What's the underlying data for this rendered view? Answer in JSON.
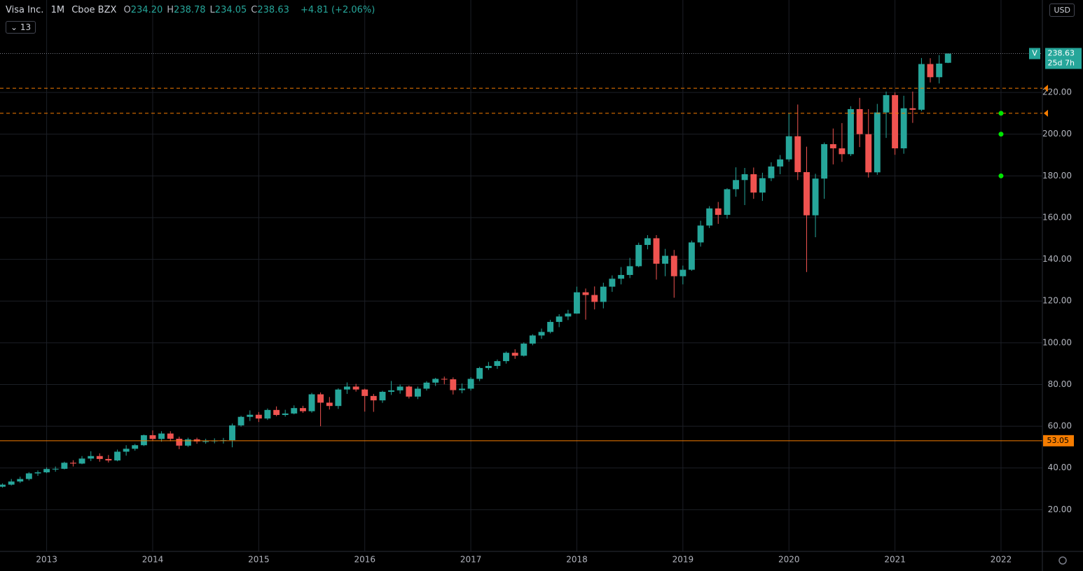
{
  "header": {
    "symbol": "Visa Inc.",
    "interval": "1M",
    "exchange": "Cboe BZX",
    "ohlc": [
      {
        "key": "O",
        "value": "234.20"
      },
      {
        "key": "H",
        "value": "238.78"
      },
      {
        "key": "L",
        "value": "234.05"
      },
      {
        "key": "C",
        "value": "238.63"
      }
    ],
    "change": "+4.81 (+2.06%)",
    "indicator_count": "13",
    "currency": "USD"
  },
  "chart_data": {
    "type": "candlestick",
    "symbol_tag": "V",
    "countdown": "25d 7h",
    "xlim": [
      2012.56,
      2022.39
    ],
    "ylim": [
      0,
      264.3
    ],
    "xticks": [
      2013,
      2014,
      2015,
      2016,
      2017,
      2018,
      2019,
      2020,
      2021,
      2022
    ],
    "yticks": [
      {
        "value": 20,
        "label": "20.00"
      },
      {
        "value": 40,
        "label": "40.00"
      },
      {
        "value": 60,
        "label": "60.00"
      },
      {
        "value": 80,
        "label": "80.00"
      },
      {
        "value": 100,
        "label": "100.00"
      },
      {
        "value": 120,
        "label": "120.00"
      },
      {
        "value": 140,
        "label": "140.00"
      },
      {
        "value": 160,
        "label": "160.00"
      },
      {
        "value": 180,
        "label": "180.00"
      },
      {
        "value": 200,
        "label": "200.00"
      },
      {
        "value": 220,
        "label": "220.00"
      }
    ],
    "grid": true,
    "up_color": "#26a69a",
    "down_color": "#ef5350",
    "x": [
      2012.583,
      2012.667,
      2012.75,
      2012.833,
      2012.917,
      2013,
      2013.083,
      2013.167,
      2013.25,
      2013.333,
      2013.417,
      2013.5,
      2013.583,
      2013.667,
      2013.75,
      2013.833,
      2013.917,
      2014,
      2014.083,
      2014.167,
      2014.25,
      2014.333,
      2014.417,
      2014.5,
      2014.583,
      2014.667,
      2014.75,
      2014.833,
      2014.917,
      2015,
      2015.083,
      2015.167,
      2015.25,
      2015.333,
      2015.417,
      2015.5,
      2015.583,
      2015.667,
      2015.75,
      2015.833,
      2015.917,
      2016,
      2016.083,
      2016.167,
      2016.25,
      2016.333,
      2016.417,
      2016.5,
      2016.583,
      2016.667,
      2016.75,
      2016.833,
      2016.917,
      2017,
      2017.083,
      2017.167,
      2017.25,
      2017.333,
      2017.417,
      2017.5,
      2017.583,
      2017.667,
      2017.75,
      2017.833,
      2017.917,
      2018,
      2018.083,
      2018.167,
      2018.25,
      2018.333,
      2018.417,
      2018.5,
      2018.583,
      2018.667,
      2018.75,
      2018.833,
      2018.917,
      2019,
      2019.083,
      2019.167,
      2019.25,
      2019.333,
      2019.417,
      2019.5,
      2019.583,
      2019.667,
      2019.75,
      2019.833,
      2019.917,
      2020,
      2020.083,
      2020.167,
      2020.25,
      2020.333,
      2020.417,
      2020.5,
      2020.583,
      2020.667,
      2020.75,
      2020.833,
      2020.917,
      2021,
      2021.083,
      2021.167,
      2021.25,
      2021.333,
      2021.417,
      2021.5
    ],
    "open": [
      31.0,
      32.0,
      33.5,
      34.7,
      37.4,
      37.9,
      39.5,
      39.6,
      42.5,
      42.1,
      44.5,
      45.7,
      44.3,
      43.6,
      47.8,
      49.2,
      50.9,
      55.7,
      53.9,
      56.5,
      54.0,
      50.7,
      53.7,
      52.7,
      52.8,
      53.1,
      53.3,
      60.4,
      64.5,
      65.5,
      63.7,
      67.8,
      65.4,
      66.1,
      68.7,
      67.2,
      75.3,
      71.3,
      69.7,
      77.6,
      79.0,
      77.6,
      74.5,
      72.4,
      76.5,
      77.2,
      79.0,
      74.2,
      78.0,
      80.9,
      82.7,
      82.5,
      77.3,
      78.0,
      82.7,
      87.9,
      88.9,
      91.2,
      95.2,
      93.8,
      99.6,
      103.5,
      105.2,
      110.0,
      112.6,
      114.0,
      124.2,
      122.9,
      119.6,
      126.9,
      130.7,
      132.5,
      136.7,
      146.9,
      150.1,
      137.9,
      141.7,
      131.9,
      135.0,
      148.1,
      156.2,
      164.4,
      161.3,
      173.6,
      178.0,
      180.8,
      172.0,
      178.9,
      184.5,
      187.9,
      199.0,
      181.8,
      161.1,
      178.7,
      195.2,
      193.2,
      190.4,
      212.0,
      200.0,
      181.7,
      210.4,
      218.7,
      193.2,
      212.4,
      211.7,
      233.6,
      227.3,
      234.2
    ],
    "high": [
      32.6,
      34.7,
      35.8,
      38.0,
      38.8,
      40.3,
      40.7,
      43.0,
      43.7,
      45.7,
      48.0,
      47.0,
      46.2,
      48.8,
      50.9,
      51.5,
      56.0,
      58.0,
      57.6,
      57.6,
      55.0,
      54.5,
      54.5,
      54.0,
      54.2,
      54.4,
      61.3,
      65.0,
      67.6,
      66.8,
      68.5,
      69.5,
      67.9,
      70.0,
      69.8,
      76.0,
      76.2,
      74.0,
      78.2,
      81.0,
      80.3,
      78.0,
      75.5,
      77.0,
      81.7,
      80.0,
      79.5,
      79.0,
      81.6,
      83.2,
      83.8,
      83.4,
      80.5,
      83.5,
      88.5,
      90.8,
      92.0,
      95.8,
      96.9,
      100.2,
      104.1,
      106.8,
      111.0,
      113.7,
      115.8,
      126.9,
      126.0,
      127.0,
      128.8,
      132.3,
      136.3,
      140.7,
      148.0,
      151.6,
      151.6,
      145.0,
      144.5,
      137.0,
      149.0,
      158.5,
      165.5,
      167.5,
      174.1,
      184.1,
      183.8,
      184.0,
      181.5,
      186.5,
      190.0,
      210.1,
      214.2,
      194.0,
      181.0,
      196.0,
      202.7,
      205.3,
      213.4,
      217.4,
      212.0,
      214.5,
      220.4,
      220.0,
      218.4,
      220.4,
      236.5,
      236.4,
      237.9,
      238.78
    ],
    "low": [
      30.6,
      31.6,
      32.8,
      34.0,
      36.2,
      37.5,
      38.2,
      39.3,
      40.7,
      41.8,
      43.3,
      43.0,
      42.6,
      43.2,
      45.9,
      48.3,
      50.5,
      53.2,
      52.6,
      52.8,
      49.0,
      50.1,
      51.6,
      51.6,
      51.8,
      51.7,
      49.9,
      59.8,
      62.5,
      62.0,
      63.0,
      64.8,
      64.6,
      65.7,
      66.4,
      66.5,
      60.0,
      68.0,
      68.3,
      75.5,
      76.6,
      67.0,
      66.9,
      71.2,
      75.0,
      75.6,
      73.3,
      73.0,
      77.1,
      79.3,
      80.1,
      75.2,
      75.8,
      77.1,
      81.6,
      87.0,
      87.5,
      90.0,
      92.3,
      93.4,
      98.8,
      101.9,
      104.5,
      107.5,
      110.9,
      113.9,
      111.1,
      116.0,
      116.5,
      124.4,
      128.0,
      131.0,
      136.2,
      144.8,
      130.3,
      131.9,
      121.6,
      128.0,
      134.5,
      146.1,
      155.0,
      157.0,
      159.5,
      170.0,
      166.0,
      169.0,
      168.0,
      177.5,
      180.8,
      186.8,
      178.0,
      133.9,
      150.6,
      169.0,
      185.5,
      186.7,
      189.5,
      193.8,
      179.2,
      180.5,
      198.2,
      190.1,
      190.6,
      205.4,
      211.0,
      224.8,
      224.3,
      234.05
    ],
    "close": [
      32.0,
      33.5,
      34.7,
      37.4,
      37.9,
      39.5,
      39.6,
      42.5,
      42.1,
      44.5,
      45.7,
      44.3,
      43.6,
      47.8,
      49.2,
      50.9,
      55.7,
      53.9,
      56.5,
      54.0,
      50.7,
      53.7,
      52.7,
      52.8,
      53.1,
      53.3,
      60.4,
      64.5,
      65.5,
      63.7,
      67.8,
      65.4,
      66.1,
      68.7,
      67.2,
      75.3,
      71.3,
      69.7,
      77.6,
      79.0,
      77.6,
      74.5,
      72.4,
      76.5,
      77.2,
      79.0,
      74.2,
      78.0,
      80.9,
      82.7,
      82.5,
      77.3,
      78.0,
      82.7,
      87.9,
      88.9,
      91.2,
      95.2,
      93.8,
      99.6,
      103.5,
      105.2,
      110.0,
      112.6,
      114.0,
      124.2,
      122.9,
      119.6,
      126.9,
      130.7,
      132.5,
      136.7,
      146.9,
      150.1,
      137.9,
      141.7,
      131.9,
      135.0,
      148.1,
      156.2,
      164.4,
      161.3,
      173.6,
      178.0,
      180.8,
      172.0,
      178.9,
      184.5,
      187.9,
      199.0,
      181.8,
      161.1,
      178.7,
      195.2,
      193.2,
      190.4,
      212.0,
      200.0,
      181.7,
      210.4,
      218.7,
      193.2,
      212.4,
      211.7,
      233.6,
      227.3,
      233.8,
      238.63
    ],
    "price_lines": [
      {
        "value": 222,
        "style": "dashed",
        "color": "#f57c00"
      },
      {
        "value": 210,
        "style": "dashed",
        "color": "#f57c00"
      },
      {
        "value": 53.05,
        "style": "solid",
        "color": "#f57c00"
      }
    ],
    "targets": {
      "x": 2022,
      "color": "#00e600",
      "values": [
        210,
        200,
        180
      ]
    }
  }
}
